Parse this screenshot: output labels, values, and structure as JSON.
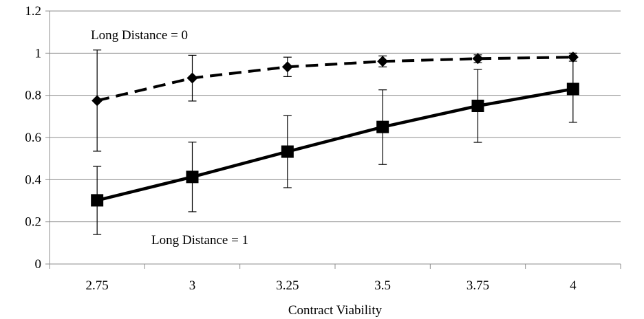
{
  "chart_data": {
    "type": "line",
    "title": "",
    "xlabel": "Contract Viability",
    "ylabel": "",
    "categories": [
      "2.75",
      "3",
      "3.25",
      "3.5",
      "3.75",
      "4"
    ],
    "yticks": [
      "0",
      "0.2",
      "0.4",
      "0.6",
      "0.8",
      "1",
      "1.2"
    ],
    "ylim": [
      0,
      1.2
    ],
    "grid": "horizontal",
    "legend": "none",
    "series": [
      {
        "name": "Long Distance = 0",
        "values": [
          0.775,
          0.882,
          0.935,
          0.961,
          0.974,
          0.981
        ],
        "error_low": [
          0.535,
          0.773,
          0.889,
          0.935,
          0.955,
          0.962
        ],
        "error_high": [
          1.015,
          0.99,
          0.981,
          0.987,
          0.992,
          1.0
        ],
        "line_style": "dashed",
        "marker": "diamond",
        "color": "#000000"
      },
      {
        "name": "Long Distance = 1",
        "values": [
          0.302,
          0.413,
          0.533,
          0.65,
          0.75,
          0.83
        ],
        "error_low": [
          0.14,
          0.248,
          0.362,
          0.472,
          0.577,
          0.672
        ],
        "error_high": [
          0.463,
          0.578,
          0.704,
          0.826,
          0.923,
          0.99
        ],
        "line_style": "solid",
        "marker": "square",
        "color": "#000000"
      }
    ],
    "annotations": [
      {
        "text": "Long Distance = 0",
        "series": 0
      },
      {
        "text": "Long Distance = 1",
        "series": 1
      }
    ]
  }
}
